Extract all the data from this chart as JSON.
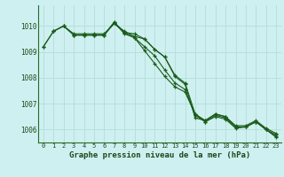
{
  "background_color": "#cff0f0",
  "grid_color": "#b8dede",
  "line_color": "#1a5c1a",
  "xlabel": "Graphe pression niveau de la mer (hPa)",
  "xlim": [
    -0.5,
    23.5
  ],
  "ylim": [
    1005.5,
    1010.8
  ],
  "yticks": [
    1006,
    1007,
    1008,
    1009,
    1010
  ],
  "xticks": [
    0,
    1,
    2,
    3,
    4,
    5,
    6,
    7,
    8,
    9,
    10,
    11,
    12,
    13,
    14,
    15,
    16,
    17,
    18,
    19,
    20,
    21,
    22,
    23
  ],
  "series1": {
    "x": [
      0,
      1,
      2,
      3,
      4,
      5,
      6,
      7,
      8,
      9,
      10,
      11,
      12,
      13,
      14,
      15,
      16,
      17,
      18,
      19,
      20,
      21,
      22,
      23
    ],
    "y": [
      1009.2,
      1009.8,
      1010.0,
      1009.65,
      1009.65,
      1009.65,
      1009.65,
      1010.1,
      1009.75,
      1009.7,
      1009.5,
      1009.1,
      1008.8,
      1008.05,
      1007.75,
      1006.45,
      1006.35,
      1006.6,
      1006.5,
      1006.1,
      1006.1,
      1006.3,
      1006.0,
      1005.8
    ]
  },
  "series2": {
    "x": [
      0,
      1,
      2,
      3,
      4,
      5,
      6,
      7,
      8,
      9,
      10,
      11,
      12,
      13,
      14,
      15,
      16,
      17,
      18,
      19,
      20,
      21,
      22,
      23
    ],
    "y": [
      1009.2,
      1009.8,
      1010.0,
      1009.65,
      1009.65,
      1009.65,
      1009.65,
      1010.15,
      1009.75,
      1009.55,
      1009.05,
      1008.55,
      1008.05,
      1007.65,
      1007.45,
      1006.6,
      1006.3,
      1006.5,
      1006.4,
      1006.05,
      1006.1,
      1006.3,
      1006.0,
      1005.7
    ]
  },
  "series3": {
    "x": [
      1,
      2,
      3,
      4,
      5,
      6,
      7,
      8,
      9,
      10,
      11,
      12,
      13,
      14,
      15,
      16,
      17,
      18,
      19,
      20,
      21,
      22,
      23
    ],
    "y": [
      1009.8,
      1010.0,
      1009.7,
      1009.7,
      1009.7,
      1009.7,
      1010.1,
      1009.8,
      1009.6,
      1009.5,
      1009.1,
      1008.8,
      1008.1,
      1007.8,
      1006.6,
      1006.35,
      1006.6,
      1006.5,
      1006.15,
      1006.15,
      1006.35,
      1006.05,
      1005.85
    ]
  },
  "series4": {
    "x": [
      3,
      4,
      5,
      6,
      7,
      8,
      9,
      10,
      11,
      12,
      13,
      14,
      15,
      16,
      17,
      18,
      19,
      20,
      21,
      22,
      23
    ],
    "y": [
      1009.65,
      1009.65,
      1009.65,
      1009.65,
      1010.15,
      1009.7,
      1009.55,
      1009.2,
      1008.85,
      1008.3,
      1007.8,
      1007.55,
      1006.55,
      1006.3,
      1006.55,
      1006.45,
      1006.1,
      1006.1,
      1006.3,
      1006.0,
      1005.75
    ]
  }
}
